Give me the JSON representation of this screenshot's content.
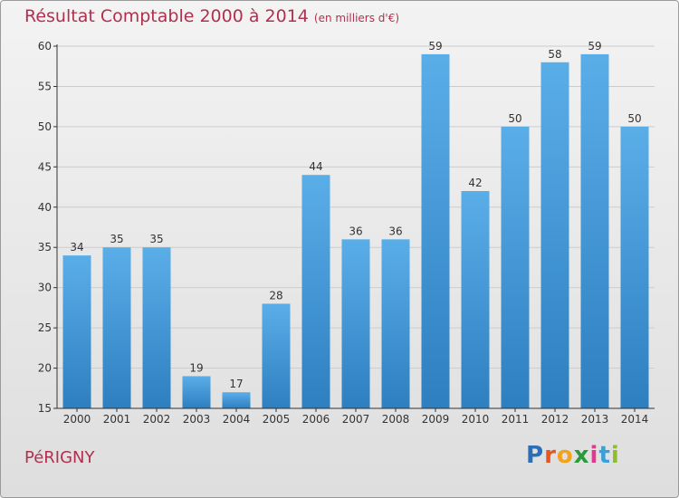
{
  "chart_data": {
    "type": "bar",
    "title": "Résultat Comptable 2000 à 2014",
    "subtitle": "(en milliers d'€)",
    "categories": [
      "2000",
      "2001",
      "2002",
      "2003",
      "2004",
      "2005",
      "2006",
      "2007",
      "2008",
      "2009",
      "2010",
      "2011",
      "2012",
      "2013",
      "2014"
    ],
    "values": [
      34,
      35,
      35,
      19,
      17,
      28,
      44,
      36,
      36,
      59,
      42,
      50,
      58,
      59,
      50
    ],
    "ylim": [
      15,
      60
    ],
    "yticks": [
      15,
      20,
      25,
      30,
      35,
      40,
      45,
      50,
      55,
      60
    ],
    "grid": true,
    "xlabel": "",
    "ylabel": ""
  },
  "footer": {
    "commune": "PéRIGNY",
    "brand_letters": [
      "P",
      "r",
      "o",
      "x",
      "i",
      "t",
      "i"
    ],
    "brand_colors": [
      "#2a6fb8",
      "#e8561f",
      "#f2a21b",
      "#2a9a3c",
      "#e03a8c",
      "#3aa0d8",
      "#8cbf2a"
    ]
  },
  "colors": {
    "title": "#b0304e",
    "bar_light": "#5aaee8",
    "bar_dark": "#2d7fc0",
    "grid": "#cccccc",
    "axis": "#333333"
  }
}
